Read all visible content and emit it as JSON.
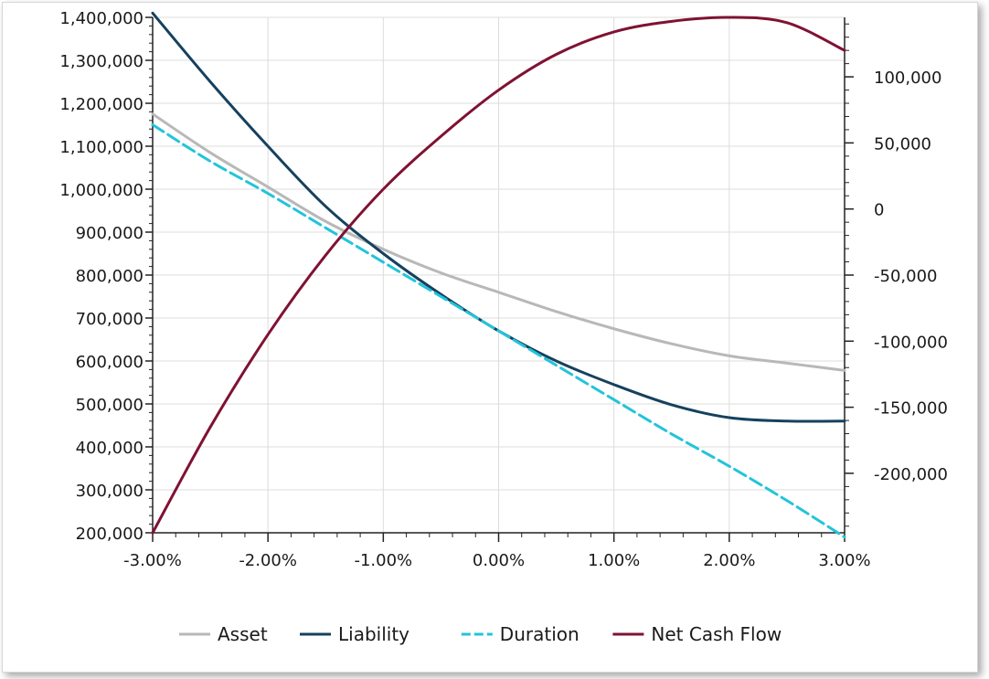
{
  "chart_data": {
    "type": "line",
    "title": "",
    "xlabel": "",
    "ylabel": "",
    "x_ticks": [
      -0.03,
      -0.02,
      -0.01,
      0.0,
      0.01,
      0.02,
      0.03
    ],
    "x_tick_labels": [
      "-3.00%",
      "-2.00%",
      "-1.00%",
      "0.00%",
      "1.00%",
      "2.00%",
      "3.00%"
    ],
    "xlim": [
      -0.03,
      0.03
    ],
    "y_left": {
      "lim": [
        200000,
        1400000
      ],
      "ticks": [
        200000,
        300000,
        400000,
        500000,
        600000,
        700000,
        800000,
        900000,
        1000000,
        1100000,
        1200000,
        1300000,
        1400000
      ],
      "tick_labels": [
        "200,000",
        "300,000",
        "400,000",
        "500,000",
        "600,000",
        "700,000",
        "800,000",
        "900,000",
        "1,000,000",
        "1,100,000",
        "1,200,000",
        "1,300,000",
        "1,400,000"
      ]
    },
    "y_right": {
      "lim": [
        -245000,
        145000
      ],
      "ticks": [
        -200000,
        -150000,
        -100000,
        -50000,
        0,
        50000,
        100000
      ],
      "tick_labels": [
        "-200,000",
        "-150,000",
        "-100,000",
        "-50,000",
        "0",
        "50,000",
        "100,000"
      ]
    },
    "grid": true,
    "legend_position": "bottom",
    "x": [
      -0.03,
      -0.025,
      -0.02,
      -0.015,
      -0.01,
      -0.005,
      0.0,
      0.005,
      0.01,
      0.015,
      0.02,
      0.025,
      0.03
    ],
    "series": [
      {
        "name": "Asset",
        "axis": "left",
        "color": "#b8b8b8",
        "style": "solid",
        "values": [
          1175000,
          1085000,
          1005000,
          925000,
          860000,
          805000,
          760000,
          715000,
          675000,
          640000,
          612000,
          595000,
          578000
        ]
      },
      {
        "name": "Liability",
        "axis": "left",
        "color": "#15415e",
        "style": "solid",
        "values": [
          1410000,
          1250000,
          1100000,
          960000,
          850000,
          755000,
          670000,
          600000,
          545000,
          498000,
          468000,
          460000,
          460000
        ]
      },
      {
        "name": "Duration",
        "axis": "left",
        "color": "#22c4da",
        "style": "dashed",
        "values": [
          1150000,
          1065000,
          990000,
          910000,
          830000,
          750000,
          670000,
          590000,
          510000,
          430000,
          355000,
          275000,
          190000
        ]
      },
      {
        "name": "Net Cash Flow",
        "axis": "right",
        "color": "#7f1232",
        "style": "solid",
        "values": [
          -245000,
          -165000,
          -95000,
          -35000,
          15000,
          55000,
          90000,
          117000,
          134000,
          142000,
          145000,
          141000,
          120000
        ]
      }
    ]
  }
}
